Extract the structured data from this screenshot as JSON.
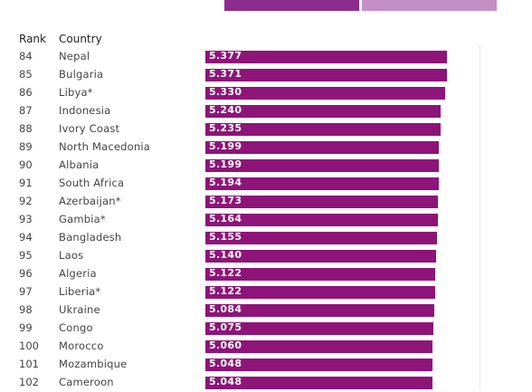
{
  "colors": {
    "bar": "#8e1479",
    "legend_dark": "#8e2b8e",
    "legend_light": "#c38fc5"
  },
  "table": {
    "rank_header": "Rank",
    "country_header": "Country"
  },
  "chart_data": {
    "type": "bar",
    "orientation": "horizontal",
    "columns": [
      "Rank",
      "Country"
    ],
    "xlim": [
      0,
      6.1
    ],
    "ranks": [
      "84",
      "85",
      "86",
      "87",
      "88",
      "89",
      "90",
      "91",
      "92",
      "93",
      "94",
      "95",
      "96",
      "97",
      "98",
      "99",
      "100",
      "101",
      "102"
    ],
    "categories": [
      "Nepal",
      "Bulgaria",
      "Libya*",
      "Indonesia",
      "Ivory Coast",
      "North Macedonia",
      "Albania",
      "South Africa",
      "Azerbaijan*",
      "Gambia*",
      "Bangladesh",
      "Laos",
      "Algeria",
      "Liberia*",
      "Ukraine",
      "Congo",
      "Morocco",
      "Mozambique",
      "Cameroon"
    ],
    "labels": [
      "5.377",
      "5.371",
      "5.330",
      "5.240",
      "5.235",
      "5.199",
      "5.199",
      "5.194",
      "5.173",
      "5.164",
      "5.155",
      "5.140",
      "5.122",
      "5.122",
      "5.084",
      "5.075",
      "5.060",
      "5.048",
      "5.048"
    ],
    "values": [
      5.377,
      5.371,
      5.33,
      5.24,
      5.235,
      5.199,
      5.199,
      5.194,
      5.173,
      5.164,
      5.155,
      5.14,
      5.122,
      5.122,
      5.084,
      5.075,
      5.06,
      5.048,
      5.048
    ]
  }
}
